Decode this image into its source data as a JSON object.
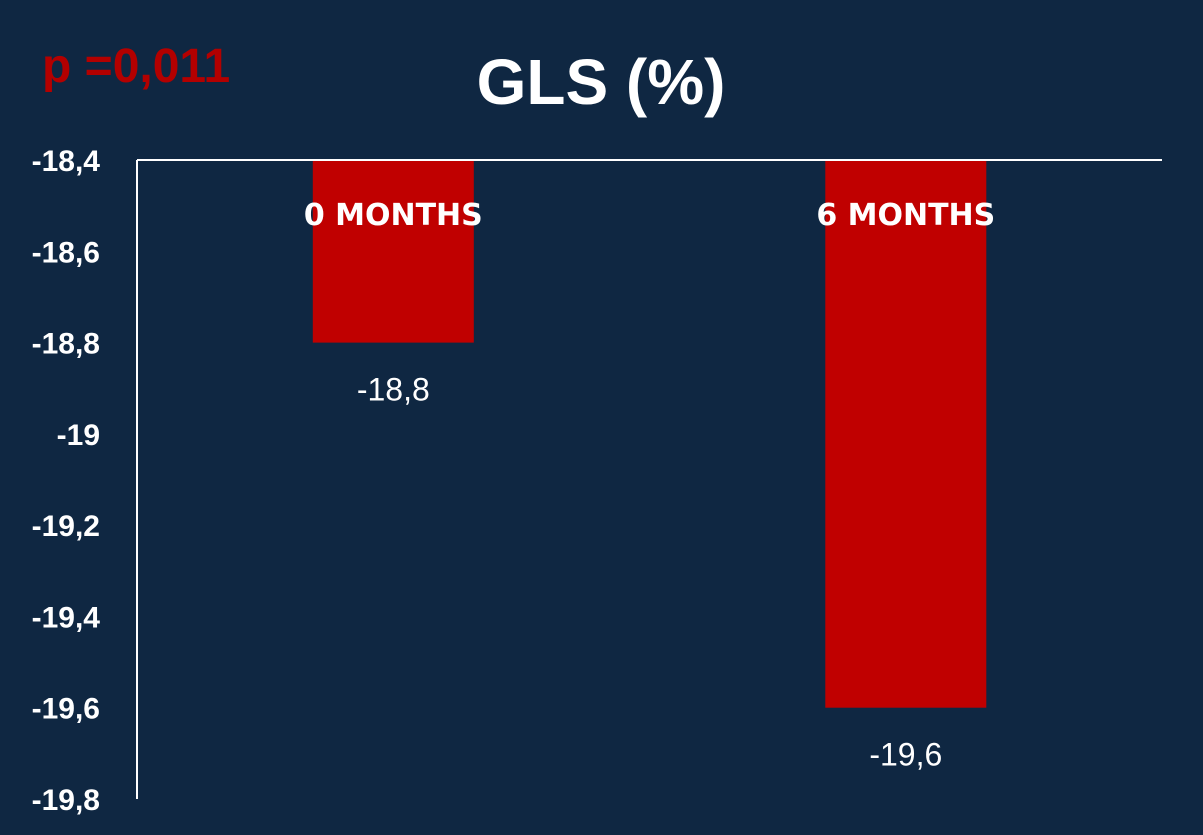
{
  "chart_data": {
    "type": "bar",
    "title": "GLS (%)",
    "annotation": "p =0,011",
    "categories": [
      "0 MONTHS",
      "6 MONTHS"
    ],
    "values": [
      -18.8,
      -19.6
    ],
    "value_labels": [
      "-18,8",
      "-19,6"
    ],
    "ylim": [
      -19.8,
      -18.4
    ],
    "y_ticks": [
      -18.4,
      -18.6,
      -18.8,
      -19.0,
      -19.2,
      -19.4,
      -19.6,
      -19.8
    ],
    "y_tick_labels": [
      "-18,4",
      "-18,6",
      "-18,8",
      "-19",
      "-19,2",
      "-19,4",
      "-19,6",
      "-19,8"
    ],
    "y_inverted": true,
    "category_axis_position": "top",
    "grid": false,
    "legend": "none",
    "colors": {
      "background": "#0f2742",
      "bar": "#c00000",
      "annotation": "#b30000",
      "text": "#ffffff",
      "axis": "#ffffff"
    }
  }
}
